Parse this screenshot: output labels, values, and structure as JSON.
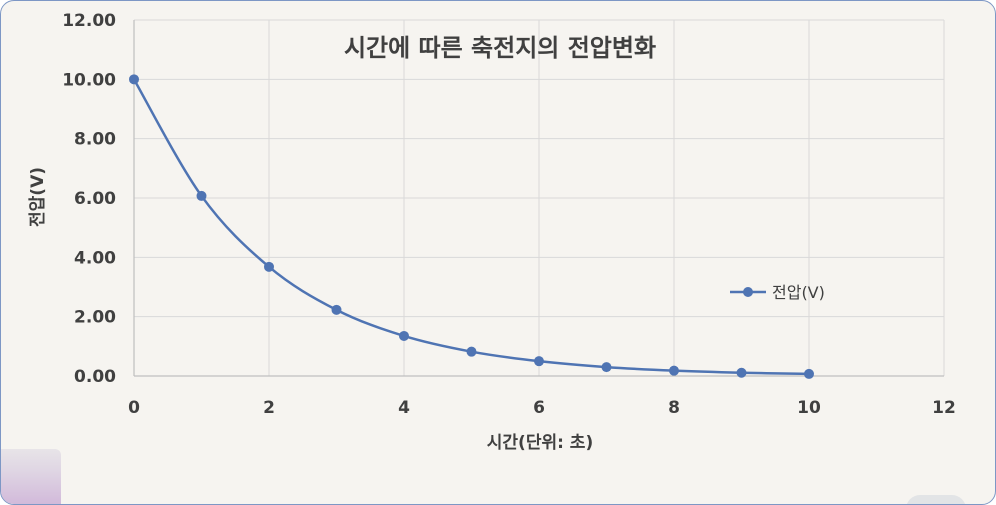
{
  "chart_data": {
    "type": "line",
    "title": "시간에 따른 축전지의 전압변화",
    "xlabel": "시간(단위: 초)",
    "ylabel": "전압(V)",
    "xlim": [
      0,
      12
    ],
    "ylim": [
      0,
      12
    ],
    "x_ticks": [
      "0",
      "2",
      "4",
      "6",
      "8",
      "10",
      "12"
    ],
    "y_ticks": [
      "0.00",
      "2.00",
      "4.00",
      "6.00",
      "8.00",
      "10.00",
      "12.00"
    ],
    "grid": true,
    "legend_position": "right",
    "line_color": "#4f74b3",
    "series": [
      {
        "name": "전압(V)",
        "x": [
          0,
          1,
          2,
          3,
          4,
          5,
          6,
          7,
          8,
          9,
          10
        ],
        "values": [
          10.0,
          6.07,
          3.68,
          2.23,
          1.35,
          0.82,
          0.5,
          0.3,
          0.18,
          0.11,
          0.07
        ]
      }
    ]
  }
}
